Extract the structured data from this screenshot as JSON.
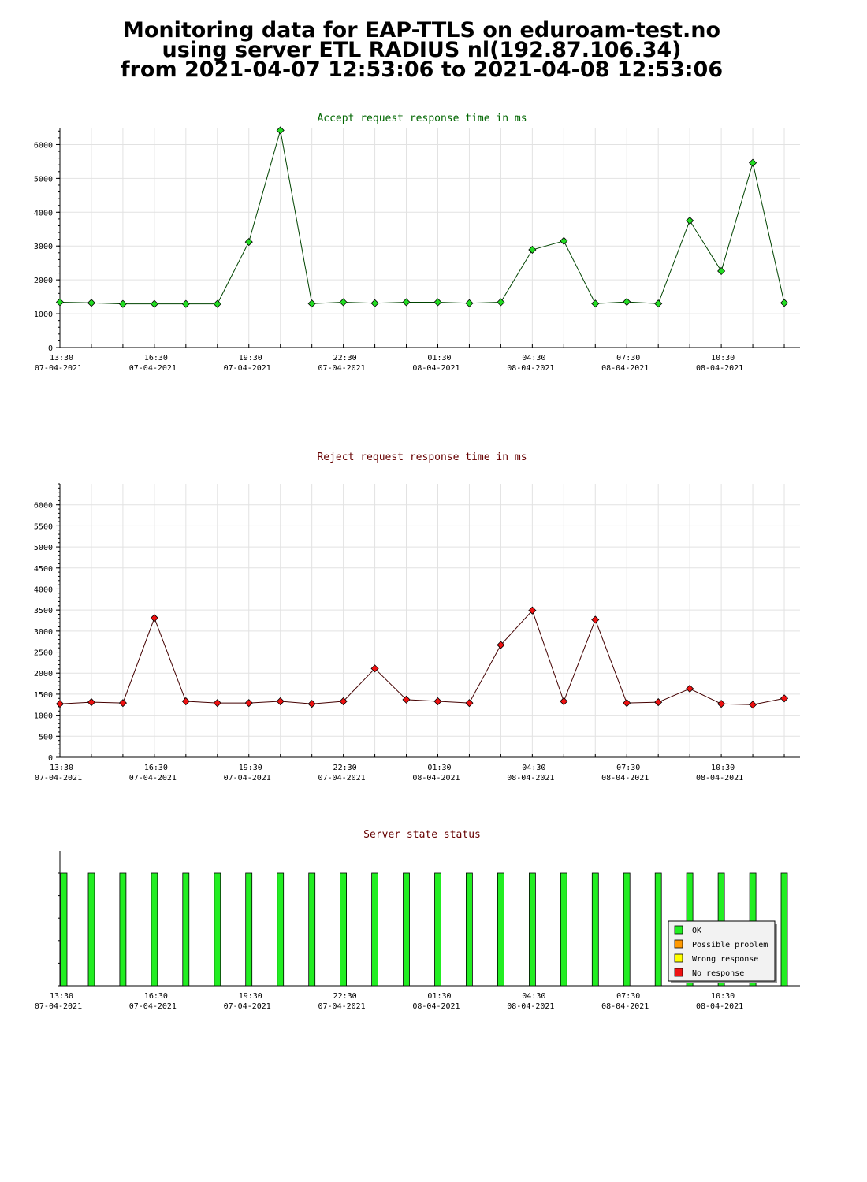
{
  "page_title": {
    "line1": "Monitoring data for EAP-TTLS on eduroam-test.no",
    "line2": "using server ETL RADIUS nl(192.87.106.34)",
    "line3": "from 2021-04-07 12:53:06 to 2021-04-08 12:53:06"
  },
  "x_ticks": [
    {
      "time": "13:30",
      "date": "07-04-2021"
    },
    {
      "time": "16:30",
      "date": "07-04-2021"
    },
    {
      "time": "19:30",
      "date": "07-04-2021"
    },
    {
      "time": "22:30",
      "date": "07-04-2021"
    },
    {
      "time": "01:30",
      "date": "08-04-2021"
    },
    {
      "time": "04:30",
      "date": "08-04-2021"
    },
    {
      "time": "07:30",
      "date": "08-04-2021"
    },
    {
      "time": "10:30",
      "date": "08-04-2021"
    }
  ],
  "chart_data": [
    {
      "type": "line",
      "title": "Accept request response time in ms",
      "title_color": "#006600",
      "marker_color": "#22dd22",
      "line_color": "#004400",
      "x_range": [
        "2021-04-07 13:30",
        "2021-04-08 13:00"
      ],
      "x": [
        "2021-04-07 13:30",
        "2021-04-07 14:30",
        "2021-04-07 15:30",
        "2021-04-07 16:30",
        "2021-04-07 17:30",
        "2021-04-07 18:30",
        "2021-04-07 19:30",
        "2021-04-07 20:30",
        "2021-04-07 21:30",
        "2021-04-07 22:30",
        "2021-04-07 23:30",
        "2021-04-08 00:30",
        "2021-04-08 01:30",
        "2021-04-08 02:30",
        "2021-04-08 03:30",
        "2021-04-08 04:30",
        "2021-04-08 05:30",
        "2021-04-08 06:30",
        "2021-04-08 07:30",
        "2021-04-08 08:30",
        "2021-04-08 09:30",
        "2021-04-08 10:30",
        "2021-04-08 11:30",
        "2021-04-08 12:30"
      ],
      "values": [
        1340,
        1320,
        1290,
        1290,
        1290,
        1290,
        3120,
        6420,
        1300,
        1340,
        1310,
        1340,
        1340,
        1310,
        1340,
        2890,
        3150,
        1300,
        1350,
        1300,
        3750,
        2260,
        5460,
        1320
      ],
      "ylim": [
        0,
        6500
      ],
      "yticks": [
        0,
        1000,
        2000,
        3000,
        4000,
        5000,
        6000
      ],
      "grid": true
    },
    {
      "type": "line",
      "title": "Reject request response time in ms",
      "title_color": "#660000",
      "marker_color": "#ee1111",
      "line_color": "#440000",
      "x_range": [
        "2021-04-07 13:30",
        "2021-04-08 13:00"
      ],
      "x": [
        "2021-04-07 13:30",
        "2021-04-07 14:30",
        "2021-04-07 15:30",
        "2021-04-07 16:30",
        "2021-04-07 17:30",
        "2021-04-07 18:30",
        "2021-04-07 19:30",
        "2021-04-07 20:30",
        "2021-04-07 21:30",
        "2021-04-07 22:30",
        "2021-04-07 23:30",
        "2021-04-08 00:30",
        "2021-04-08 01:30",
        "2021-04-08 02:30",
        "2021-04-08 03:30",
        "2021-04-08 04:30",
        "2021-04-08 05:30",
        "2021-04-08 06:30",
        "2021-04-08 07:30",
        "2021-04-08 08:30",
        "2021-04-08 09:30",
        "2021-04-08 10:30",
        "2021-04-08 11:30",
        "2021-04-08 12:30"
      ],
      "values": [
        1270,
        1310,
        1290,
        3310,
        1330,
        1290,
        1290,
        1330,
        1270,
        1330,
        2110,
        1370,
        1330,
        1290,
        2670,
        3490,
        1330,
        3270,
        1290,
        1310,
        1630,
        1270,
        1250,
        1400
      ],
      "ylim": [
        0,
        6500
      ],
      "yticks": [
        0,
        500,
        1000,
        1500,
        2000,
        2500,
        3000,
        3500,
        4000,
        4500,
        5000,
        5500,
        6000
      ],
      "grid": true
    },
    {
      "type": "bar",
      "title": "Server state status",
      "title_color": "#660000",
      "x_range": [
        "2021-04-07 13:30",
        "2021-04-08 13:00"
      ],
      "x": [
        "2021-04-07 13:30",
        "2021-04-07 14:30",
        "2021-04-07 15:30",
        "2021-04-07 16:30",
        "2021-04-07 17:30",
        "2021-04-07 18:30",
        "2021-04-07 19:30",
        "2021-04-07 20:30",
        "2021-04-07 21:30",
        "2021-04-07 22:30",
        "2021-04-07 23:30",
        "2021-04-08 00:30",
        "2021-04-08 01:30",
        "2021-04-08 02:30",
        "2021-04-08 03:30",
        "2021-04-08 04:30",
        "2021-04-08 05:30",
        "2021-04-08 06:30",
        "2021-04-08 07:30",
        "2021-04-08 08:30",
        "2021-04-08 09:30",
        "2021-04-08 10:30",
        "2021-04-08 11:30",
        "2021-04-08 12:30"
      ],
      "status": [
        "OK",
        "OK",
        "OK",
        "OK",
        "OK",
        "OK",
        "OK",
        "OK",
        "OK",
        "OK",
        "OK",
        "OK",
        "OK",
        "OK",
        "OK",
        "OK",
        "OK",
        "OK",
        "OK",
        "OK",
        "OK",
        "OK",
        "OK",
        "OK"
      ],
      "legend": {
        "placement": "bottom-right",
        "items": [
          {
            "label": "OK",
            "color": "#22ee22"
          },
          {
            "label": "Possible problem",
            "color": "#ff9900"
          },
          {
            "label": "Wrong response",
            "color": "#ffff00"
          },
          {
            "label": "No response",
            "color": "#ee1111"
          }
        ]
      }
    }
  ]
}
